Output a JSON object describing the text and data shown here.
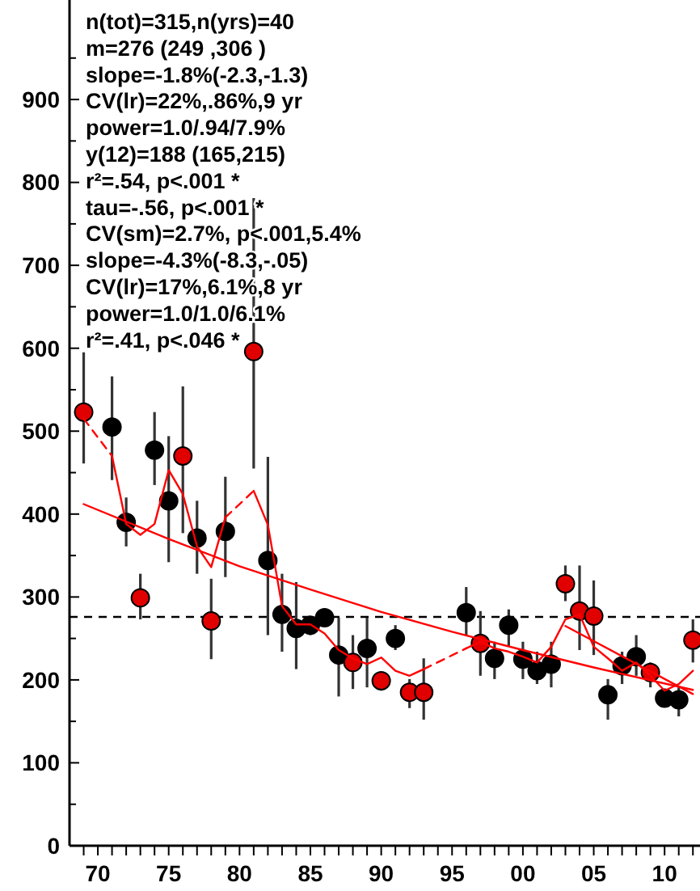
{
  "chart_data": {
    "type": "scatter",
    "marker": "circle",
    "xlim": [
      1968,
      2012.5
    ],
    "ylim": [
      0,
      1020
    ],
    "xticks": [
      {
        "value": 1969,
        "label": null
      },
      {
        "value": 1970,
        "label": "70"
      },
      {
        "value": 1971,
        "label": null
      },
      {
        "value": 1972,
        "label": null
      },
      {
        "value": 1973,
        "label": null
      },
      {
        "value": 1974,
        "label": null
      },
      {
        "value": 1975,
        "label": "75"
      },
      {
        "value": 1976,
        "label": null
      },
      {
        "value": 1977,
        "label": null
      },
      {
        "value": 1978,
        "label": null
      },
      {
        "value": 1979,
        "label": null
      },
      {
        "value": 1980,
        "label": "80"
      },
      {
        "value": 1981,
        "label": null
      },
      {
        "value": 1982,
        "label": null
      },
      {
        "value": 1983,
        "label": null
      },
      {
        "value": 1984,
        "label": null
      },
      {
        "value": 1985,
        "label": "85"
      },
      {
        "value": 1986,
        "label": null
      },
      {
        "value": 1987,
        "label": null
      },
      {
        "value": 1988,
        "label": null
      },
      {
        "value": 1989,
        "label": null
      },
      {
        "value": 1990,
        "label": "90"
      },
      {
        "value": 1991,
        "label": null
      },
      {
        "value": 1992,
        "label": null
      },
      {
        "value": 1993,
        "label": null
      },
      {
        "value": 1994,
        "label": null
      },
      {
        "value": 1995,
        "label": "95"
      },
      {
        "value": 1996,
        "label": null
      },
      {
        "value": 1997,
        "label": null
      },
      {
        "value": 1998,
        "label": null
      },
      {
        "value": 1999,
        "label": null
      },
      {
        "value": 2000,
        "label": "00"
      },
      {
        "value": 2001,
        "label": null
      },
      {
        "value": 2002,
        "label": null
      },
      {
        "value": 2003,
        "label": null
      },
      {
        "value": 2004,
        "label": null
      },
      {
        "value": 2005,
        "label": "05"
      },
      {
        "value": 2006,
        "label": null
      },
      {
        "value": 2007,
        "label": null
      },
      {
        "value": 2008,
        "label": null
      },
      {
        "value": 2009,
        "label": null
      },
      {
        "value": 2010,
        "label": "10"
      },
      {
        "value": 2011,
        "label": null
      },
      {
        "value": 2012,
        "label": null
      }
    ],
    "yticks": [
      0,
      {
        "value": 50,
        "label": null
      },
      100,
      {
        "value": 150,
        "label": null
      },
      200,
      {
        "value": 250,
        "label": null
      },
      300,
      {
        "value": 350,
        "label": null
      },
      400,
      {
        "value": 450,
        "label": null
      },
      500,
      {
        "value": 550,
        "label": null
      },
      600,
      {
        "value": 650,
        "label": null
      },
      700,
      {
        "value": 750,
        "label": null
      },
      800,
      {
        "value": 850,
        "label": null
      },
      900,
      {
        "value": 950,
        "label": null
      }
    ],
    "ref_lines": [
      {
        "axis": "y",
        "value": 276,
        "color": "#000000",
        "line_style": "dashed"
      }
    ],
    "series": [
      {
        "type": "line",
        "marker": "none",
        "color": "#ff0000",
        "line_style": "solid",
        "x": [
          1969,
          1975,
          1980,
          1985,
          1990,
          1995,
          2000,
          2005,
          2012
        ],
        "values": [
          412,
          370,
          337,
          309,
          282,
          258,
          236,
          215,
          188
        ]
      },
      {
        "type": "line",
        "marker": "none",
        "color": "#ff0000",
        "line_style": "solid",
        "x": [
          2003,
          2012
        ],
        "values": [
          265,
          183
        ]
      },
      {
        "type": "line",
        "marker": "none",
        "color": "#ff0000",
        "line_style": "dashed",
        "x": [
          1969,
          1971
        ],
        "values": [
          515,
          470
        ]
      },
      {
        "type": "line",
        "marker": "none",
        "color": "#ff0000",
        "line_style": "solid",
        "x": [
          1971,
          1972,
          1973,
          1974,
          1975,
          1976,
          1977,
          1978,
          1979
        ],
        "values": [
          470,
          388,
          375,
          388,
          453,
          424,
          361,
          336,
          396
        ]
      },
      {
        "type": "line",
        "marker": "none",
        "color": "#ff0000",
        "line_style": "dashed",
        "x": [
          1979,
          1981
        ],
        "values": [
          396,
          428
        ]
      },
      {
        "type": "line",
        "marker": "none",
        "color": "#ff0000",
        "line_style": "solid",
        "x": [
          1981,
          1982,
          1983,
          1984,
          1985,
          1986,
          1987,
          1988,
          1989,
          1990,
          1991,
          1992,
          1993
        ],
        "values": [
          428,
          387,
          289,
          267,
          267,
          256,
          236,
          226,
          219,
          227,
          211,
          205,
          213
        ]
      },
      {
        "type": "line",
        "marker": "none",
        "color": "#ff0000",
        "line_style": "dashed",
        "x": [
          1993,
          1996
        ],
        "values": [
          213,
          238
        ]
      },
      {
        "type": "line",
        "marker": "none",
        "color": "#ff0000",
        "line_style": "solid",
        "x": [
          1996,
          1997,
          1998,
          1999,
          2000,
          2001,
          2002,
          2003,
          2004,
          2005,
          2006,
          2007,
          2008,
          2009,
          2010,
          2011,
          2012
        ],
        "values": [
          238,
          246,
          238,
          234,
          228,
          221,
          240,
          273,
          279,
          240,
          226,
          211,
          221,
          205,
          187,
          195,
          211
        ]
      },
      {
        "type": "scatter",
        "color": "#000000",
        "x": [
          1971,
          1972,
          1974,
          1975,
          1977,
          1979,
          1982,
          1983,
          1984,
          1985,
          1986,
          1987,
          1989,
          1991,
          1996,
          1998,
          1999,
          2000,
          2001,
          2002,
          2006,
          2007,
          2008,
          2010,
          2011
        ],
        "values": [
          505,
          390,
          477,
          416,
          371,
          379,
          344,
          279,
          262,
          266,
          275,
          230,
          238,
          250,
          281,
          226,
          266,
          225,
          211,
          219,
          182,
          217,
          228,
          178,
          176
        ],
        "errors": [
          [
            441,
            566
          ],
          [
            361,
            420
          ],
          [
            435,
            523
          ],
          [
            342,
            494
          ],
          [
            328,
            416
          ],
          [
            324,
            445
          ],
          [
            254,
            469
          ],
          [
            234,
            328
          ],
          [
            213,
            318
          ],
          [
            254,
            273
          ],
          [
            266,
            283
          ],
          [
            180,
            275
          ],
          [
            191,
            275
          ],
          [
            236,
            266
          ],
          [
            254,
            312
          ],
          [
            201,
            246
          ],
          [
            240,
            285
          ],
          [
            201,
            246
          ],
          [
            195,
            234
          ],
          [
            191,
            246
          ],
          [
            152,
            201
          ],
          [
            195,
            234
          ],
          [
            205,
            254
          ],
          [
            168,
            187
          ],
          [
            156,
            191
          ]
        ]
      },
      {
        "type": "scatter",
        "color": "#e00000",
        "x": [
          1969,
          1973,
          1976,
          1978,
          1981,
          1988,
          1990,
          1992,
          1993,
          1997,
          2003,
          2004,
          2005,
          2009,
          2012
        ],
        "values": [
          523,
          299,
          470,
          271,
          596,
          221,
          199,
          185,
          185,
          244,
          316,
          283,
          277,
          209,
          248
        ],
        "errors": [
          [
            461,
            595
          ],
          [
            273,
            328
          ],
          [
            377,
            554
          ],
          [
            225,
            322
          ],
          [
            455,
            781
          ],
          [
            189,
            254
          ],
          [
            187,
            207
          ],
          [
            166,
            201
          ],
          [
            152,
            226
          ],
          [
            205,
            283
          ],
          [
            295,
            338
          ],
          [
            236,
            338
          ],
          [
            230,
            320
          ],
          [
            191,
            221
          ],
          [
            221,
            273
          ]
        ]
      }
    ],
    "annotations": [
      "n(tot)=315,n(yrs)=40",
      "m=276  (249 ,306 )",
      "slope=-1.8%(-2.3,-1.3)",
      "CV(lr)=22%,.86%,9 yr",
      "power=1.0/.94/7.9%",
      "y(12)=188 (165,215)",
      "r²=.54, p<.001 *",
      "tau=-.56, p<.001 *",
      "CV(sm)=2.7%, p<.001,5.4%",
      "slope=-4.3%(-8.3,-.05)",
      "CV(lr)=17%,6.1%,8 yr",
      "power=1.0/1.0/6.1%",
      "r²=.41, p<.046 *"
    ]
  }
}
